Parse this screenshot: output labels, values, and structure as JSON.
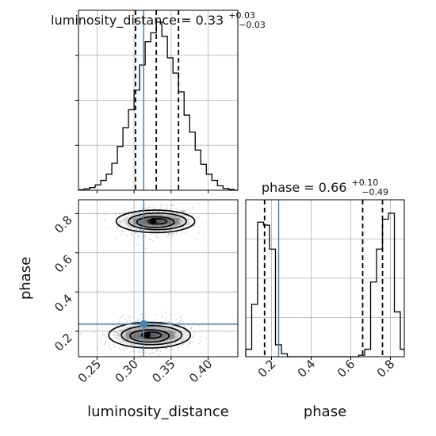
{
  "colors": {
    "truth": "#4682b4",
    "hist": "#000000",
    "grid": "#b0b0b0",
    "points": "#808080",
    "quantile": "#000000"
  },
  "chart_data": [
    {
      "type": "histogram",
      "parameter": "luminosity_distance",
      "title_text": "luminosity_distance = 0.33",
      "title_sup": "+0.03",
      "title_sub": "−0.03",
      "xlim": [
        0.225,
        0.44
      ],
      "median": 0.33,
      "quantiles": [
        0.302,
        0.33,
        0.36
      ],
      "truth": 0.313,
      "grid": true,
      "bin_edges": [
        0.225,
        0.2325,
        0.24,
        0.2475,
        0.255,
        0.2625,
        0.27,
        0.2775,
        0.285,
        0.2925,
        0.3,
        0.3075,
        0.315,
        0.3225,
        0.33,
        0.3375,
        0.345,
        0.3525,
        0.36,
        0.3675,
        0.375,
        0.3825,
        0.39,
        0.3975,
        0.405,
        0.4125,
        0.42,
        0.4275,
        0.435,
        0.44
      ],
      "counts": [
        0.5,
        1.5,
        3,
        6,
        11,
        18,
        30,
        49,
        70,
        90,
        112,
        140,
        166,
        176,
        188,
        172,
        148,
        131,
        110,
        84,
        65,
        45,
        29,
        18,
        11,
        5,
        2,
        1,
        0
      ]
    },
    {
      "type": "scatter-contour",
      "x_parameter": "luminosity_distance",
      "y_parameter": "phase",
      "xlabel": "luminosity_distance",
      "ylabel": "phase",
      "xlim": [
        0.225,
        0.44
      ],
      "ylim": [
        0.07,
        0.87
      ],
      "xticks": [
        "0.25",
        "0.30",
        "0.35",
        "0.40"
      ],
      "yticks": [
        "0.2",
        "0.4",
        "0.6",
        "0.8"
      ],
      "truth": [
        0.313,
        0.236
      ],
      "modes": [
        {
          "x": 0.33,
          "y": 0.76,
          "sx": 0.024,
          "sy": 0.035
        },
        {
          "x": 0.322,
          "y": 0.18,
          "sx": 0.025,
          "sy": 0.04
        }
      ],
      "grid": true
    },
    {
      "type": "histogram",
      "parameter": "phase",
      "title_text": "phase = 0.66",
      "title_sup": "+0.10",
      "title_sub": "−0.49",
      "xlabel": "phase",
      "xlim": [
        0.07,
        0.87
      ],
      "xticks": [
        "0.2",
        "0.4",
        "0.6",
        "0.8"
      ],
      "median": 0.66,
      "quantiles": [
        0.165,
        0.66,
        0.76
      ],
      "truth": 0.236,
      "grid": true,
      "bin_edges": [
        0.07,
        0.1,
        0.13,
        0.16,
        0.19,
        0.22,
        0.25,
        0.28,
        0.31,
        0.34,
        0.37,
        0.4,
        0.43,
        0.46,
        0.49,
        0.52,
        0.55,
        0.58,
        0.61,
        0.64,
        0.67,
        0.7,
        0.73,
        0.76,
        0.79,
        0.82,
        0.85,
        0.87
      ],
      "counts": [
        0.05,
        0.35,
        0.9,
        0.88,
        0.72,
        0.08,
        0.02,
        0,
        0,
        0,
        0,
        0,
        0,
        0,
        0,
        0,
        0,
        0,
        0,
        0.01,
        0.05,
        0.5,
        0.72,
        0.92,
        0.96,
        0.3,
        0.05
      ]
    }
  ]
}
